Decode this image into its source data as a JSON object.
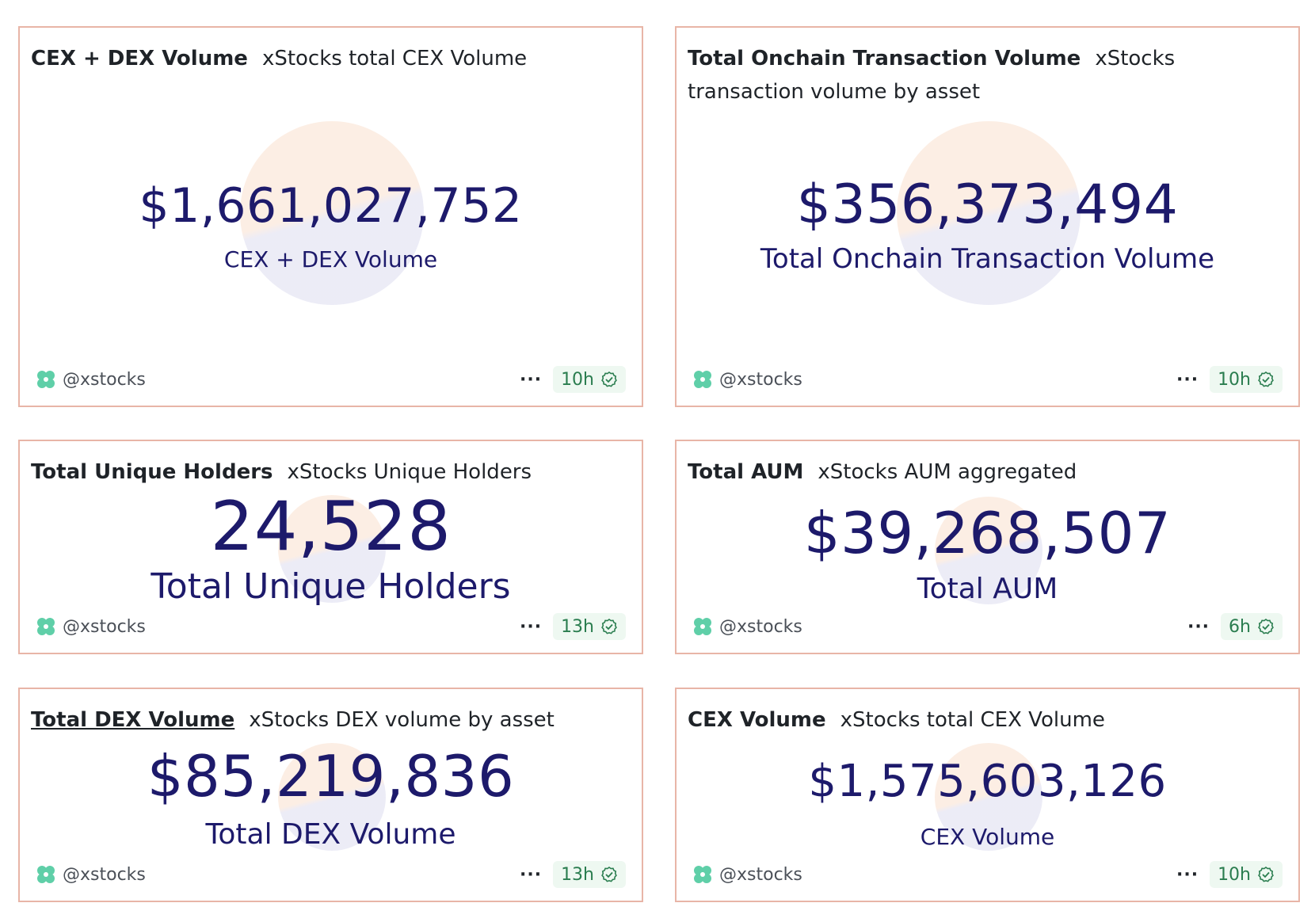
{
  "brand": {
    "owner_icon": "owner-flower-icon",
    "accent": "#1d1a6b",
    "border": "#e8b5a7",
    "badge_green": "#2a7d4f"
  },
  "cards": [
    {
      "title": "CEX + DEX Volume",
      "subtitle": "xStocks total CEX Volume",
      "value": "$1,661,027,752",
      "label": "CEX + DEX Volume",
      "owner": "@xstocks",
      "age": "10h"
    },
    {
      "title": "Total Onchain Transaction Volume",
      "subtitle": "xStocks transaction volume by asset",
      "value": "$356,373,494",
      "label": "Total Onchain Transaction Volume",
      "owner": "@xstocks",
      "age": "10h"
    },
    {
      "title": "Total Unique Holders",
      "subtitle": "xStocks Unique Holders",
      "value": "24,528",
      "label": "Total Unique Holders",
      "owner": "@xstocks",
      "age": "13h"
    },
    {
      "title": "Total AUM",
      "subtitle": "xStocks AUM aggregated",
      "value": "$39,268,507",
      "label": "Total AUM",
      "owner": "@xstocks",
      "age": "6h"
    },
    {
      "title": "Total DEX Volume",
      "subtitle": "xStocks DEX volume by asset",
      "value": "$85,219,836",
      "label": "Total DEX Volume",
      "owner": "@xstocks",
      "age": "13h"
    },
    {
      "title": "CEX Volume",
      "subtitle": "xStocks total CEX Volume",
      "value": "$1,575,603,126",
      "label": "CEX Volume",
      "owner": "@xstocks",
      "age": "10h"
    }
  ],
  "more_label": "···"
}
